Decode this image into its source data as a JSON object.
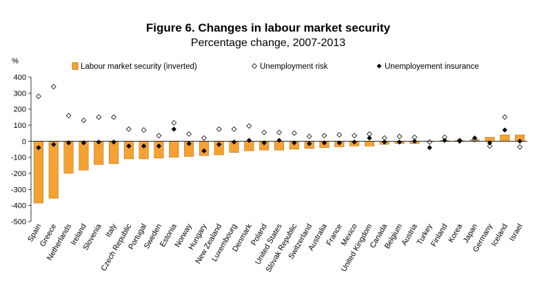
{
  "chart_data": {
    "type": "bar",
    "title": "Figure 6. Changes in labour market security",
    "subtitle": "Percentage change, 2007-2013",
    "ylabel": "%",
    "xlabel": "",
    "ylim": [
      -500,
      400
    ],
    "yticks": [
      400,
      300,
      200,
      100,
      0,
      -100,
      -200,
      -300,
      -400,
      -500
    ],
    "grid": false,
    "legend_position": "top",
    "categories": [
      "Spain",
      "Greece",
      "Netherlands",
      "Ireland",
      "Slovenia",
      "Italy",
      "Czech Republic",
      "Portugal",
      "Sweden",
      "Estonia",
      "Norway",
      "Hungary",
      "New Zealand",
      "Luxembourg",
      "Denmark",
      "Poland",
      "United States",
      "Slovak Republic",
      "Switzerland",
      "Australia",
      "France",
      "Mexico",
      "United Kingdom",
      "Canada",
      "Belgium",
      "Austria",
      "Turkey",
      "Finland",
      "Korea",
      "Japan",
      "Germany",
      "Iceland",
      "Israel"
    ],
    "series": [
      {
        "name": "Labour market security (inverted)",
        "kind": "bar",
        "color": "#f5a233",
        "values": [
          -385,
          -355,
          -200,
          -180,
          -145,
          -140,
          -110,
          -110,
          -105,
          -100,
          -95,
          -90,
          -85,
          -70,
          -60,
          -55,
          -55,
          -50,
          -45,
          -40,
          -35,
          -30,
          -30,
          -20,
          -15,
          -15,
          0,
          5,
          5,
          10,
          25,
          40,
          40
        ]
      },
      {
        "name": "Unemployment risk",
        "kind": "marker",
        "marker": "open-diamond",
        "values": [
          280,
          340,
          160,
          130,
          150,
          150,
          75,
          70,
          35,
          115,
          45,
          20,
          75,
          75,
          95,
          55,
          55,
          50,
          30,
          35,
          40,
          35,
          45,
          20,
          30,
          25,
          -5,
          25,
          5,
          10,
          -30,
          150,
          -35
        ]
      },
      {
        "name": "Unemployement insurance",
        "kind": "marker",
        "marker": "filled-diamond",
        "values": [
          -40,
          -20,
          -10,
          -10,
          -5,
          -5,
          -30,
          -30,
          -30,
          75,
          -15,
          -60,
          -20,
          -5,
          5,
          -10,
          5,
          -10,
          -15,
          -10,
          -10,
          -5,
          20,
          -5,
          -5,
          0,
          -40,
          5,
          0,
          20,
          -10,
          70,
          0
        ]
      }
    ]
  }
}
